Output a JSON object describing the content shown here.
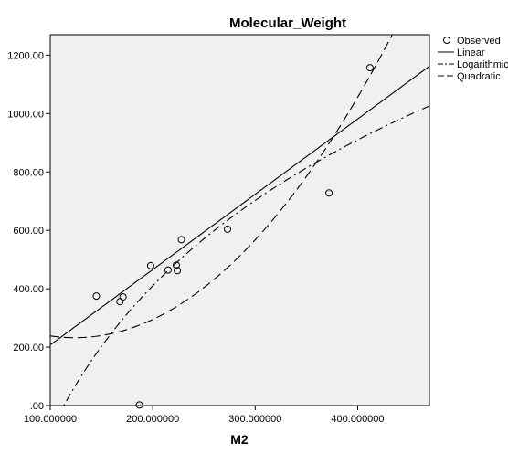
{
  "chart_data": {
    "type": "scatter",
    "title": "Molecular_Weight",
    "xlabel": "M2",
    "ylabel": "",
    "xlim": [
      100,
      470
    ],
    "ylim": [
      0,
      1270
    ],
    "x_ticks": [
      100,
      200,
      300,
      400
    ],
    "x_tick_labels": [
      "100.000000",
      "200.000000",
      "300.000000",
      "400.000000"
    ],
    "y_ticks": [
      0,
      200,
      400,
      600,
      800,
      1000,
      1200
    ],
    "y_tick_labels": [
      ".00",
      "200.00",
      "400.00",
      "600.00",
      "800.00",
      "1000.00",
      "1200.00"
    ],
    "grid": false,
    "legend_position": "top-right",
    "colors": {
      "plot_bg": "#f0f0f0",
      "line": "#000000",
      "marker": "#000000"
    },
    "series": [
      {
        "name": "Observed",
        "kind": "markers",
        "points": [
          [
            145,
            375
          ],
          [
            168,
            356
          ],
          [
            171,
            372
          ],
          [
            187,
            2
          ],
          [
            198,
            479
          ],
          [
            215,
            464
          ],
          [
            223,
            481
          ],
          [
            224,
            462
          ],
          [
            228,
            568
          ],
          [
            273,
            604
          ],
          [
            372,
            728
          ],
          [
            412,
            1157
          ]
        ]
      },
      {
        "name": "Linear",
        "kind": "solid",
        "fn": "linear",
        "coef": [
          -50.5,
          2.58
        ]
      },
      {
        "name": "Logarithmic",
        "kind": "dashdot",
        "fn": "log",
        "coef": [
          -3410,
          721
        ]
      },
      {
        "name": "Quadratic",
        "kind": "dashed",
        "fn": "quadratic",
        "coef": [
          398.5,
          -2.68,
          0.01081
        ]
      }
    ]
  }
}
